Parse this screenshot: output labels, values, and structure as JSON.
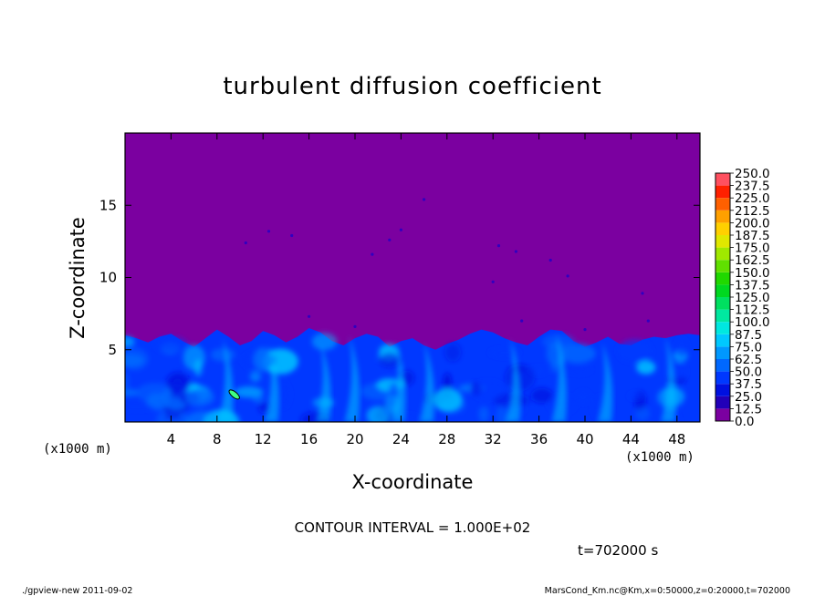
{
  "chart_data": {
    "type": "heatmap",
    "title": "turbulent diffusion coefficient",
    "xlabel": "X-coordinate",
    "ylabel": "Z-coordinate",
    "x_unit": "(x1000 m)",
    "y_unit": "(x1000 m)",
    "xlim": [
      0,
      50
    ],
    "ylim": [
      0,
      20
    ],
    "x_ticks": [
      "4",
      "8",
      "12",
      "16",
      "20",
      "24",
      "28",
      "32",
      "36",
      "40",
      "44",
      "48"
    ],
    "y_ticks": [
      "5",
      "10",
      "15"
    ],
    "background_value": 0.0,
    "colorbar": {
      "levels": [
        "0.0",
        "12.5",
        "25.0",
        "37.5",
        "50.0",
        "62.5",
        "75.0",
        "87.5",
        "100.0",
        "112.5",
        "125.0",
        "137.5",
        "150.0",
        "162.5",
        "175.0",
        "187.5",
        "200.0",
        "212.5",
        "225.0",
        "237.5",
        "250.0"
      ],
      "colors": [
        "#7b00a0",
        "#2200b8",
        "#0010e0",
        "#0038ff",
        "#0068ff",
        "#0098ff",
        "#00c8ff",
        "#00e8e0",
        "#00e8a0",
        "#00e060",
        "#00d820",
        "#20d800",
        "#60e000",
        "#a0e800",
        "#e0e800",
        "#ffd000",
        "#ffa000",
        "#ff6000",
        "#ff2000",
        "#ff5060"
      ]
    },
    "turbulent_layer_top_z": [
      6.0,
      5.8,
      5.5,
      5.9,
      6.1,
      5.6,
      5.2,
      5.8,
      6.4,
      5.9,
      5.3,
      5.6,
      6.3,
      6.0,
      5.5,
      5.9,
      6.5,
      6.2,
      5.6,
      5.3,
      5.8,
      6.1,
      5.9,
      5.2,
      5.6,
      5.8,
      5.3,
      5.0,
      5.4,
      5.7,
      6.1,
      6.4,
      6.2,
      5.8,
      5.5,
      5.3,
      5.9,
      6.4,
      6.3,
      5.6,
      5.2,
      5.5,
      5.9,
      5.4,
      5.3,
      5.7,
      5.9,
      5.8,
      6.0,
      6.1,
      6.0
    ],
    "contour_interval": "CONTOUR INTERVAL = 1.000E+02",
    "time": "t=702000 s"
  },
  "footer": {
    "left": "./gpview-new   2011-09-02",
    "right": "MarsCond_Km.nc@Km,x=0:50000,z=0:20000,t=702000"
  }
}
